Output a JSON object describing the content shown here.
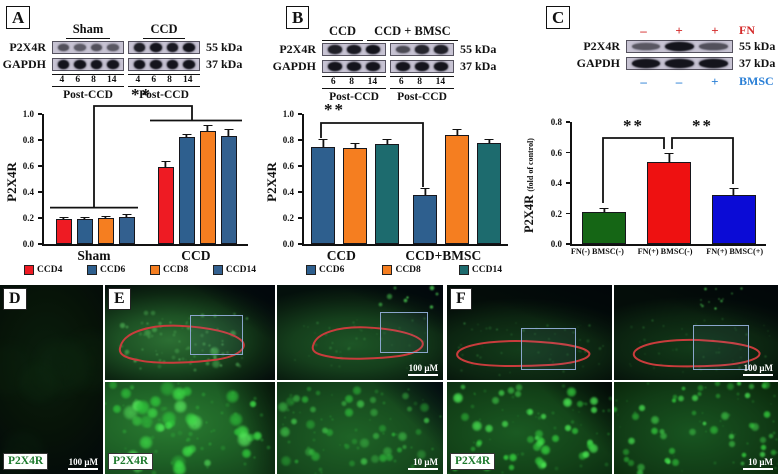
{
  "panels": {
    "a": {
      "label": "A",
      "blot": {
        "rows": [
          {
            "protein": "P2X4R",
            "kda": "55 kDa",
            "bands": [
              0.5,
              0.42,
              0.5,
              0.45,
              0.9,
              1,
              0.95,
              1
            ]
          },
          {
            "protein": "GAPDH",
            "kda": "37 kDa",
            "bands": [
              1,
              1,
              1,
              1,
              1,
              1,
              1,
              1
            ]
          }
        ],
        "groups": [
          {
            "name": "Sham",
            "lanes": [
              "4",
              "6",
              "8",
              "14"
            ],
            "sub": "Post-CCD"
          },
          {
            "name": "CCD",
            "lanes": [
              "4",
              "6",
              "8",
              "14"
            ],
            "sub": "Post-CCD"
          }
        ],
        "strip_groups": [
          4,
          4
        ]
      }
    },
    "b": {
      "label": "B",
      "blot": {
        "rows": [
          {
            "protein": "P2X4R",
            "kda": "55 kDa",
            "bands": [
              0.9,
              0.95,
              1,
              0.55,
              0.85,
              0.9
            ]
          },
          {
            "protein": "GAPDH",
            "kda": "37 kDa",
            "bands": [
              1,
              1,
              1,
              1,
              1,
              1
            ]
          }
        ],
        "groups": [
          {
            "name": "CCD",
            "lanes": [
              "6",
              "8",
              "14"
            ],
            "sub": "Post-CCD"
          },
          {
            "name": "CCD + BMSC",
            "lanes": [
              "6",
              "8",
              "14"
            ],
            "sub": "Post-CCD"
          }
        ],
        "strip_groups": [
          3,
          3
        ]
      }
    },
    "c": {
      "label": "C",
      "blot": {
        "rows": [
          {
            "protein": "P2X4R",
            "kda": "55 kDa",
            "bands": [
              0.45,
              1,
              0.5
            ]
          },
          {
            "protein": "GAPDH",
            "kda": "37 kDa",
            "bands": [
              1,
              1,
              1
            ]
          }
        ],
        "strip_groups": [
          3
        ],
        "fn_row": {
          "symbols": [
            "–",
            "+",
            "+"
          ],
          "label": "FN",
          "color": "#d42a2a"
        },
        "bmsc_row": {
          "symbols": [
            "–",
            "–",
            "+"
          ],
          "label": "BMSC",
          "color": "#2a7fd6"
        }
      }
    },
    "d": {
      "label": "D",
      "marker": "P2X4R",
      "scale": "100 μM"
    },
    "e": {
      "label": "E",
      "marker": "P2X4R",
      "scale_top": "100 μM",
      "scale_bottom": "10 μM"
    },
    "f": {
      "label": "F",
      "marker": "P2X4R",
      "scale_top": "100 μM",
      "scale_bottom": "10 μM"
    }
  },
  "chart_data": [
    {
      "type": "bar",
      "panel": "A",
      "categories": [
        "Sham",
        "CCD"
      ],
      "series": [
        {
          "name": "CCD4",
          "color": "#ee1b23",
          "values": [
            0.19,
            0.59
          ],
          "errors": [
            0.01,
            0.04
          ]
        },
        {
          "name": "CCD6",
          "color": "#2e5f8e",
          "pattern": "dots",
          "values": [
            0.19,
            0.82
          ],
          "errors": [
            0.01,
            0.02
          ]
        },
        {
          "name": "CCD8",
          "color": "#f57e20",
          "values": [
            0.2,
            0.87
          ],
          "errors": [
            0.01,
            0.04
          ]
        },
        {
          "name": "CCD14",
          "color": "#33608f",
          "values": [
            0.21,
            0.83
          ],
          "errors": [
            0.01,
            0.05
          ]
        }
      ],
      "ylabel": "P2X4R",
      "ylim": [
        0,
        1.0
      ],
      "yticks": [
        "0.0",
        "0.2",
        "0.4",
        "0.6",
        "0.8",
        "1.0"
      ],
      "grid": false,
      "legend_position": "bottom",
      "significance": "**"
    },
    {
      "type": "bar",
      "panel": "B",
      "categories": [
        "CCD",
        "CCD+BMSC"
      ],
      "series": [
        {
          "name": "CCD6",
          "color": "#2e5f8e",
          "pattern": "dots",
          "values": [
            0.75,
            0.38
          ],
          "errors": [
            0.05,
            0.04
          ]
        },
        {
          "name": "CCD8",
          "color": "#f57e20",
          "values": [
            0.74,
            0.84
          ],
          "errors": [
            0.03,
            0.04
          ]
        },
        {
          "name": "CCD14",
          "color": "#1d6b6e",
          "values": [
            0.77,
            0.78
          ],
          "errors": [
            0.03,
            0.02
          ]
        }
      ],
      "ylabel": "P2X4R",
      "ylim": [
        0,
        1.0
      ],
      "yticks": [
        "0.0",
        "0.2",
        "0.4",
        "0.6",
        "0.8",
        "1.0"
      ],
      "grid": false,
      "legend_position": "bottom",
      "significance": "**"
    },
    {
      "type": "bar",
      "panel": "C",
      "categories": [
        "FN(-) BMSC(-)",
        "FN(+) BMSC(-)",
        "FN(+) BMSC(+)"
      ],
      "series": [
        {
          "name": "P2X4R",
          "colors": [
            "#156615",
            "#ee1111",
            "#0b0bd6"
          ],
          "values": [
            0.21,
            0.54,
            0.32
          ],
          "errors": [
            0.02,
            0.05,
            0.04
          ]
        }
      ],
      "ylabel": "P2X4R",
      "ylabel2": "(fold of control)",
      "ylim": [
        0,
        0.8
      ],
      "yticks": [
        "0.0",
        "0.2",
        "0.4",
        "0.6",
        "0.8"
      ],
      "grid": false,
      "significance": [
        "**",
        "**"
      ]
    }
  ]
}
